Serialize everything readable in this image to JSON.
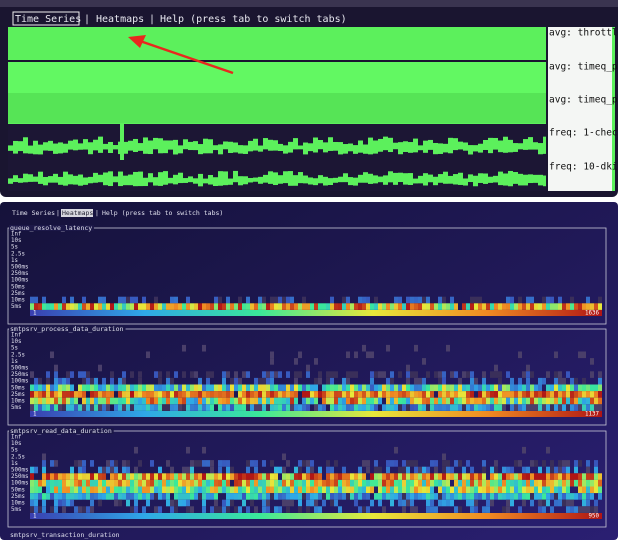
{
  "top_tabs": {
    "time_series": "Time Series",
    "heatmaps": "Heatmaps",
    "help": "Help (press tab to switch tabs)",
    "separator": "|"
  },
  "top_right_labels": [
    "avg: throttl",
    "avg: timeq_p",
    "avg: timeq_p",
    "freq: 1-chec",
    "freq: 10-dki"
  ],
  "bottom_tabs": {
    "time_series": "Time Series",
    "heatmaps": "Heatmaps",
    "help": "Help (press tab to switch tabs)",
    "separator": "|"
  },
  "y_axis_labels": [
    "Inf",
    "10s",
    "5s",
    "2.5s",
    "1s",
    "500ms",
    "250ms",
    "100ms",
    "50ms",
    "25ms",
    "10ms",
    "5ms"
  ],
  "heatmaps": [
    {
      "title": "queue_resolve_latency",
      "scale_min": 1,
      "scale_max": 1636
    },
    {
      "title": "smtpsrv_process_data_duration",
      "scale_min": 1,
      "scale_max": 1137
    },
    {
      "title": "smtpsrv_read_data_duration",
      "scale_min": 1,
      "scale_max": 950
    }
  ],
  "next_heatmap_title": "smtpsrv_transaction_duration"
}
